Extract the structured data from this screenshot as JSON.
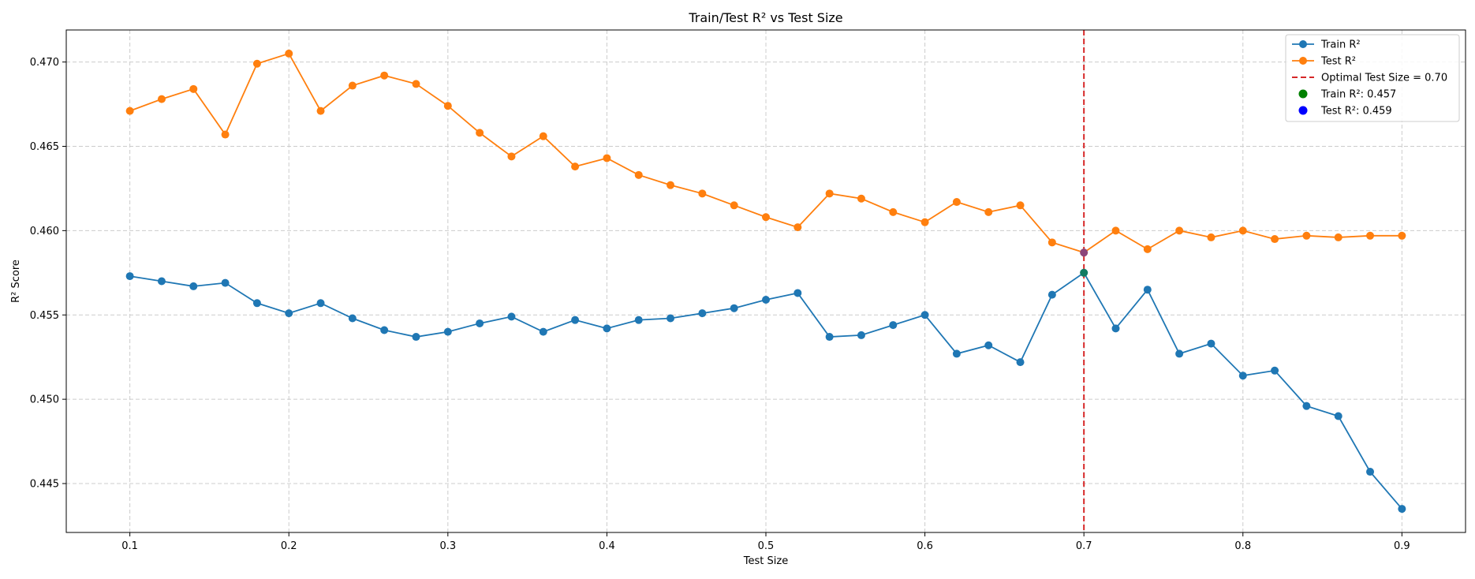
{
  "chart_data": {
    "type": "line",
    "title": "Train/Test R² vs Test Size",
    "xlabel": "Test Size",
    "ylabel": "R² Score",
    "xlim": [
      0.06,
      0.94
    ],
    "ylim": [
      0.4421,
      0.4719
    ],
    "xticks": [
      0.1,
      0.2,
      0.3,
      0.4,
      0.5,
      0.6,
      0.7,
      0.8,
      0.9
    ],
    "xtick_labels": [
      "0.1",
      "0.2",
      "0.3",
      "0.4",
      "0.5",
      "0.6",
      "0.7",
      "0.8",
      "0.9"
    ],
    "yticks": [
      0.445,
      0.45,
      0.455,
      0.46,
      0.465,
      0.47
    ],
    "ytick_labels": [
      "0.445",
      "0.450",
      "0.455",
      "0.460",
      "0.465",
      "0.470"
    ],
    "grid": true,
    "legend_position": "top-right",
    "x": [
      0.1,
      0.12,
      0.14,
      0.16,
      0.18,
      0.2,
      0.22,
      0.24,
      0.26,
      0.28,
      0.3,
      0.32,
      0.34,
      0.36,
      0.38,
      0.4,
      0.42,
      0.44,
      0.46,
      0.48,
      0.5,
      0.52,
      0.54,
      0.56,
      0.58,
      0.6,
      0.62,
      0.64,
      0.66,
      0.68,
      0.7,
      0.72,
      0.74,
      0.76,
      0.78,
      0.8,
      0.82,
      0.84,
      0.86,
      0.88,
      0.9
    ],
    "series": [
      {
        "name": "Train R²",
        "color": "#1f77b4",
        "values": [
          0.4573,
          0.457,
          0.4567,
          0.4569,
          0.4557,
          0.4551,
          0.4557,
          0.4548,
          0.4541,
          0.4537,
          0.454,
          0.4545,
          0.4549,
          0.454,
          0.4547,
          0.4542,
          0.4547,
          0.4548,
          0.4551,
          0.4554,
          0.4559,
          0.4563,
          0.4537,
          0.4538,
          0.4544,
          0.455,
          0.4527,
          0.4532,
          0.4522,
          0.4562,
          0.4575,
          0.4542,
          0.4565,
          0.4527,
          0.4533,
          0.4514,
          0.4517,
          0.4496,
          0.449,
          0.4457,
          0.4435
        ]
      },
      {
        "name": "Test R²",
        "color": "#ff7f0e",
        "values": [
          0.4671,
          0.4678,
          0.4684,
          0.4657,
          0.4699,
          0.4705,
          0.4671,
          0.4686,
          0.4692,
          0.4687,
          0.4674,
          0.4658,
          0.4644,
          0.4656,
          0.4638,
          0.4643,
          0.4633,
          0.4627,
          0.4622,
          0.4615,
          0.4608,
          0.4602,
          0.4622,
          0.4619,
          0.4611,
          0.4605,
          0.4617,
          0.4611,
          0.4615,
          0.4593,
          0.4587,
          0.46,
          0.4589,
          0.46,
          0.4596,
          0.46,
          0.4595,
          0.4597,
          0.4596,
          0.4597,
          0.4597
        ]
      }
    ],
    "optimal": {
      "x": 0.7,
      "line_label": "Optimal Test Size = 0.70",
      "line_color": "#d62728",
      "train_label": "Train R²: 0.457",
      "train_value": 0.4575,
      "train_color": "#008000",
      "test_label": "Test R²: 0.459",
      "test_value": 0.4587,
      "test_color": "#0000ff"
    }
  }
}
